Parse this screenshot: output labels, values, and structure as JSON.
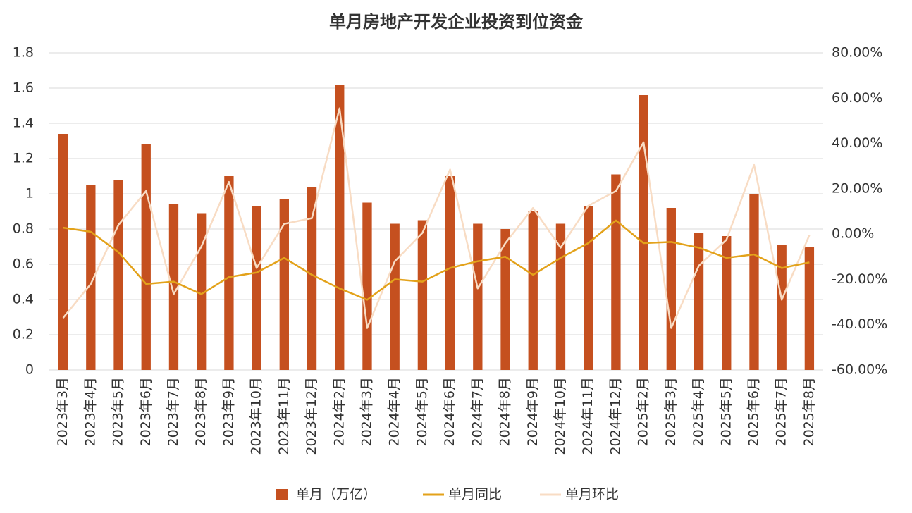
{
  "chart_data": {
    "type": "bar",
    "title": "单月房地产开发企业投资到位资金",
    "categories": [
      "2023年3月",
      "2023年4月",
      "2023年5月",
      "2023年6月",
      "2023年7月",
      "2023年8月",
      "2023年9月",
      "2023年10月",
      "2023年11月",
      "2023年12月",
      "2024年2月",
      "2024年3月",
      "2024年4月",
      "2024年5月",
      "2024年6月",
      "2024年7月",
      "2024年8月",
      "2024年9月",
      "2024年10月",
      "2024年11月",
      "2024年12月",
      "2025年2月",
      "2025年3月",
      "2025年4月",
      "2025年5月",
      "2025年6月",
      "2025年7月",
      "2025年8月"
    ],
    "series": [
      {
        "name": "单月（万亿）",
        "type": "bar",
        "color": "#c5501f",
        "values": [
          1.34,
          1.05,
          1.08,
          1.28,
          0.94,
          0.89,
          1.1,
          0.93,
          0.97,
          1.04,
          1.62,
          0.95,
          0.83,
          0.85,
          1.1,
          0.83,
          0.8,
          0.9,
          0.83,
          0.93,
          1.11,
          1.56,
          0.92,
          0.78,
          0.76,
          1.0,
          0.71,
          0.7
        ]
      },
      {
        "name": "单月同比",
        "type": "line",
        "axis": "y2",
        "color": "#e3a21a",
        "values": [
          2.8,
          1,
          -8,
          -22,
          -21,
          -26.5,
          -19,
          -17,
          -10.5,
          -18,
          -24,
          -29,
          -20,
          -21,
          -15,
          -12,
          -10,
          -18,
          -10.5,
          -4,
          6,
          -4,
          -3.5,
          -6,
          -10.5,
          -9,
          -15,
          -12.5
        ]
      },
      {
        "name": "单月环比",
        "type": "line",
        "axis": "y2",
        "color": "#f8dcc4",
        "values": [
          -37,
          -22,
          4,
          19,
          -26.5,
          -5.5,
          23,
          -15,
          4.5,
          7,
          55.5,
          -41.5,
          -12,
          0.5,
          28.5,
          -24,
          -4,
          11.5,
          -6,
          12.5,
          19,
          40.5,
          -41.5,
          -14,
          -2.5,
          30.5,
          -29,
          -0.5
        ]
      }
    ],
    "ylim": [
      0,
      1.8
    ],
    "yticks": [
      0,
      0.2,
      0.4,
      0.6,
      0.8,
      1,
      1.2,
      1.4,
      1.6,
      1.8
    ],
    "y2lim": [
      -60,
      80
    ],
    "y2ticks": [
      {
        "value": -60,
        "label": "-60.00%"
      },
      {
        "value": -40,
        "label": "-40.00%"
      },
      {
        "value": -20,
        "label": "-20.00%"
      },
      {
        "value": 0,
        "label": "0.00%"
      },
      {
        "value": 20,
        "label": "20.00%"
      },
      {
        "value": 40,
        "label": "40.00%"
      },
      {
        "value": 60,
        "label": "60.00%"
      },
      {
        "value": 80,
        "label": "80.00%"
      }
    ],
    "grid": true,
    "legend": "bottom"
  }
}
